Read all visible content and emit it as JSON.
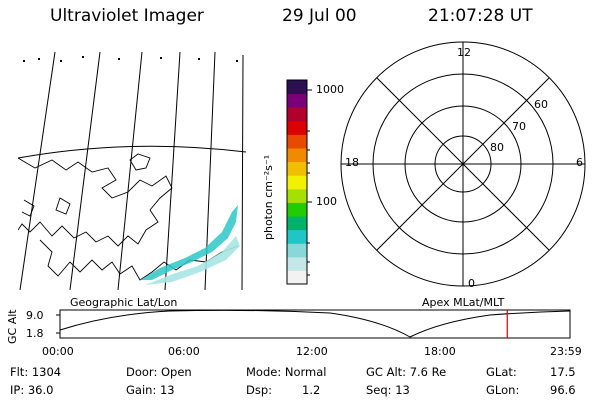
{
  "header": {
    "instrument": "Ultraviolet Imager",
    "date": "29 Jul 00",
    "time": "21:07:28 UT"
  },
  "colorbar": {
    "unit_label": "photon cm⁻²s⁻¹",
    "tick_1000": "1000",
    "tick_100": "100",
    "colors": [
      "#f2f2f2",
      "#c6e7e9",
      "#88d8da",
      "#20c6c6",
      "#00b26a",
      "#22cc00",
      "#a6e000",
      "#f2f200",
      "#f0c000",
      "#f08a00",
      "#e84a00",
      "#dd0000",
      "#b2002d",
      "#7a0078",
      "#2a1050"
    ]
  },
  "geo_map": {
    "label": "Geographic Lat/Lon"
  },
  "polar_plot": {
    "label": "Apex MLat/MLT",
    "mlt_12": "12",
    "mlt_18": "18",
    "mlt_6": "6",
    "mlt_0": "0",
    "lat_60": "60",
    "lat_70": "70",
    "lat_80": "80"
  },
  "orbit_plot": {
    "ylabel": "GC Alt",
    "y_top": "9.0",
    "y_bottom": "1.8",
    "x_ticks": [
      "00:00",
      "06:00",
      "12:00",
      "18:00",
      "23:59"
    ],
    "current_time_fraction": 0.877
  },
  "info": {
    "flt": "Flt: 1304",
    "ip": "IP: 36.0",
    "door": "Door: Open",
    "gain": "Gain: 13",
    "mode": "Mode: Normal",
    "dsp_label": "Dsp:",
    "dsp_value": "1.2",
    "gc_alt": "GC Alt: 7.6 Re",
    "seq": "Seq: 13",
    "glat_label": "GLat:",
    "glat_value": "17.5",
    "glon_label": "GLon:",
    "glon_value": "96.6"
  }
}
